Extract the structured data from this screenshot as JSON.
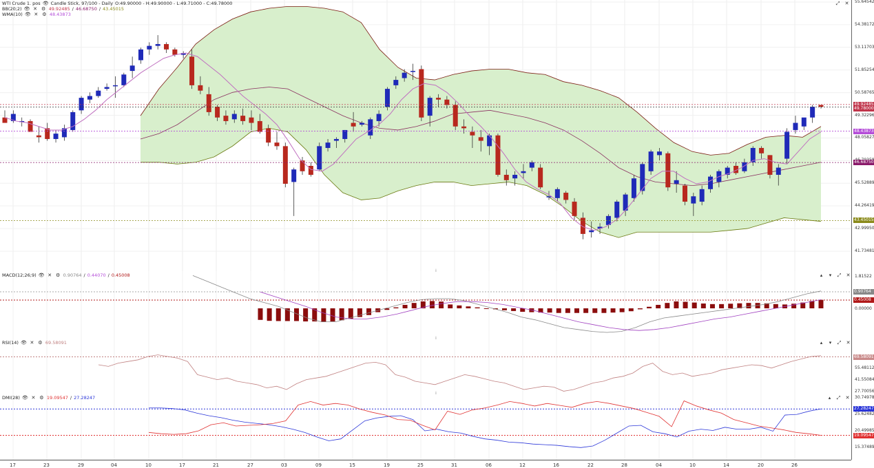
{
  "price": {
    "title": "WTI Crude 1. pos",
    "type": "Candle Stick, 97/100 - Daily",
    "ohlc": "O:49.90000 - H:49.90000 - L:49.71000 - C:49.78000",
    "bb_label": "BB(20;2)",
    "bb_values": [
      "49.92485",
      "46.68750",
      "43.45015"
    ],
    "wma_label": "WMA(10)",
    "wma_value": "48.43873",
    "ticks": [
      "55.64542",
      "54.38172",
      "53.11703",
      "51.85254",
      "50.58765",
      "49.32296",
      "48.05827",
      "46.79358",
      "45.52889",
      "44.26419",
      "42.99950",
      "41.73481"
    ],
    "tags": [
      {
        "text": "49.92485",
        "color": "#c0344a"
      },
      {
        "text": "49.78000",
        "color": "#c0344a"
      },
      {
        "text": "48.43873",
        "color": "#b44cd8"
      },
      {
        "text": "46.68750",
        "color": "#8a1a6a"
      },
      {
        "text": "43.45015",
        "color": "#8a8a1a"
      }
    ]
  },
  "macd": {
    "label": "MACD(12;26;9)",
    "values": [
      "0.90764",
      "0.44070",
      "0.45008"
    ],
    "ticks": [
      "1.81522",
      "0.00000"
    ],
    "tags": [
      {
        "text": "0.90764",
        "color": "#888"
      },
      {
        "text": "0.45008",
        "color": "#b01818"
      }
    ]
  },
  "rsi": {
    "label": "RSI(14)",
    "value": "69.58091",
    "ticks": [
      "69.58091",
      "55.48112",
      "41.55084",
      "27.70056"
    ],
    "tags": [
      {
        "text": "69.58091",
        "color": "#c98a8a"
      }
    ]
  },
  "dmi": {
    "label": "DMI(28)",
    "values": [
      "19.09547",
      "27.28247"
    ],
    "ticks": [
      "30.74978",
      "25.62482",
      "20.49985",
      "15.37489"
    ],
    "tags": [
      {
        "text": "27.28247",
        "color": "#2a35d8"
      },
      {
        "text": "19.09547",
        "color": "#e03030"
      }
    ]
  },
  "dates": [
    "17",
    "23",
    "29",
    "04",
    "10",
    "17",
    "21",
    "27",
    "03",
    "09",
    "15",
    "19",
    "25",
    "31",
    "06",
    "12",
    "16",
    "22",
    "28",
    "04",
    "10",
    "14",
    "20",
    "26"
  ],
  "colors": {
    "up": "#1f2ab8",
    "down": "#b8281e",
    "band": "#d8efcc",
    "band_line": "#7a1a10",
    "wma": "#c070c0",
    "rsi": "#c08080",
    "adx_blue": "#2a35d8",
    "adx_red": "#e03030"
  },
  "icons": [
    "eye-icon",
    "close-icon",
    "gear-icon",
    "up-icon",
    "down-icon",
    "expand-icon",
    "close-icon"
  ]
}
